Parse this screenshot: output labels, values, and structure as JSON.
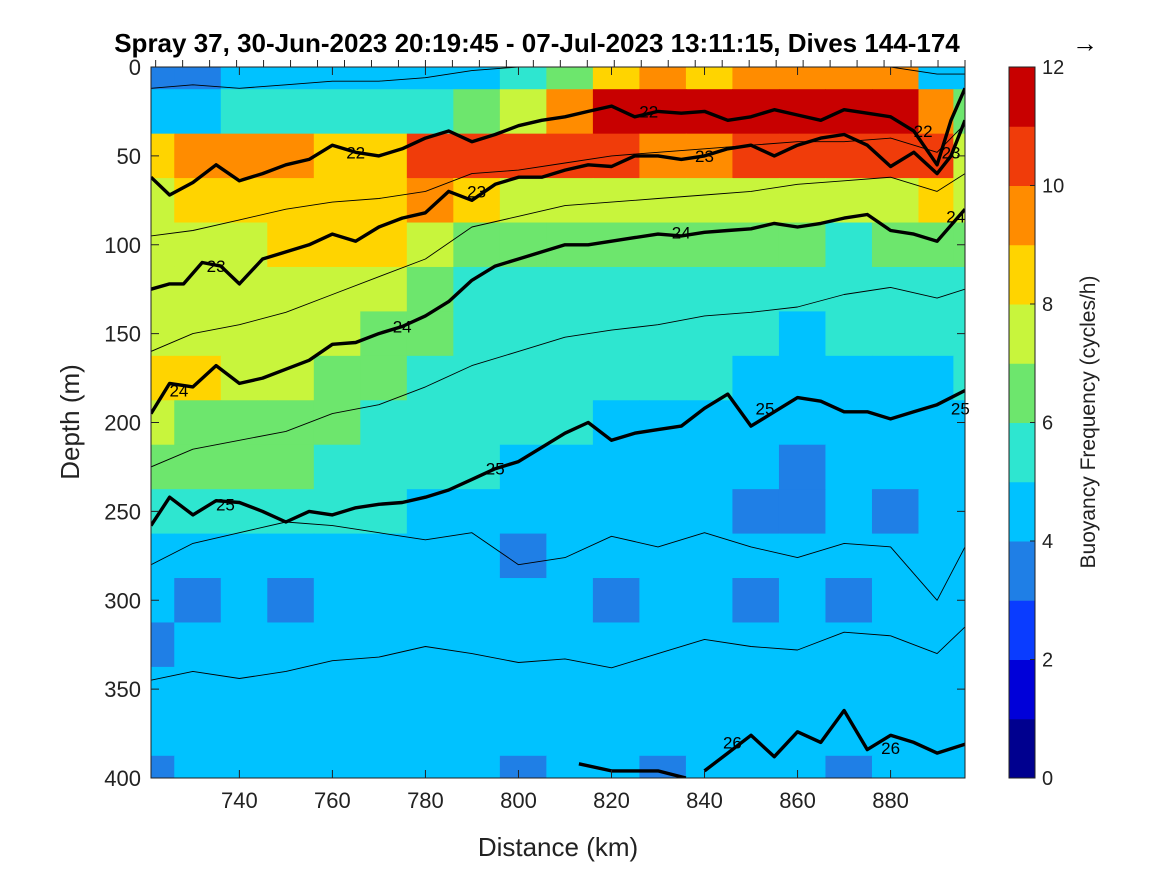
{
  "chart_data": {
    "type": "heatmap",
    "title": "Spray 37, 30-Jun-2023 20:19:45 - 07-Jul-2023 13:11:15, Dives 144-174",
    "title_arrow": "→",
    "xlabel": "Distance (km)",
    "ylabel": "Depth (m)",
    "xlim": [
      721,
      896
    ],
    "ylim": [
      0,
      400
    ],
    "y_reversed": true,
    "xticks": [
      740,
      760,
      780,
      800,
      820,
      840,
      860,
      880
    ],
    "yticks": [
      0,
      50,
      100,
      150,
      200,
      250,
      300,
      350,
      400
    ],
    "grid": false,
    "colorbar": {
      "label": "Buoyancy Frequency (cycles/h)",
      "range": [
        0,
        12
      ],
      "ticks": [
        0,
        2,
        4,
        6,
        8,
        10,
        12
      ],
      "levels": [
        0,
        1,
        2,
        3,
        4,
        5,
        6,
        7,
        8,
        9,
        10,
        11,
        12
      ],
      "colors": [
        "#00008f",
        "#0000d9",
        "#0a3cff",
        "#1f7fe6",
        "#00c2ff",
        "#2ee6d0",
        "#6de66d",
        "#c8f53c",
        "#ffd400",
        "#ff8c00",
        "#f03c0a",
        "#c80000"
      ],
      "position": "right"
    },
    "field": {
      "x": [
        721,
        731,
        741,
        751,
        761,
        771,
        781,
        791,
        801,
        811,
        821,
        831,
        841,
        851,
        861,
        871,
        881,
        891,
        896
      ],
      "depth": [
        0,
        25,
        50,
        75,
        100,
        125,
        150,
        175,
        200,
        225,
        250,
        275,
        300,
        325,
        350,
        375,
        400
      ],
      "values": [
        [
          3.6,
          3.5,
          4.2,
          4.6,
          4.6,
          4.5,
          4.6,
          4.6,
          5.2,
          6.8,
          8.6,
          9.4,
          8.6,
          9.0,
          9.6,
          9.6,
          9.2,
          4.0,
          4.0
        ],
        [
          4.2,
          4.8,
          5.6,
          5.8,
          5.6,
          5.4,
          5.8,
          6.4,
          7.4,
          9.6,
          11.0,
          11.2,
          11.0,
          11.2,
          11.6,
          11.6,
          11.4,
          9.0,
          6.0
        ],
        [
          8.4,
          9.0,
          9.4,
          9.0,
          8.8,
          8.8,
          10.6,
          10.8,
          10.6,
          10.4,
          10.2,
          9.8,
          9.6,
          10.0,
          10.0,
          10.2,
          10.6,
          10.6,
          7.6
        ],
        [
          7.8,
          8.4,
          8.6,
          8.4,
          8.6,
          8.8,
          9.4,
          8.0,
          7.8,
          7.6,
          7.6,
          7.4,
          7.6,
          7.8,
          7.8,
          7.6,
          7.8,
          8.6,
          7.6
        ],
        [
          7.6,
          7.8,
          7.8,
          8.0,
          8.4,
          8.4,
          7.6,
          6.8,
          6.4,
          6.2,
          6.0,
          6.0,
          6.2,
          6.0,
          6.0,
          5.8,
          6.0,
          6.4,
          6.6
        ],
        [
          7.6,
          7.8,
          7.8,
          7.8,
          7.8,
          7.4,
          6.6,
          5.8,
          5.6,
          5.4,
          5.4,
          5.2,
          5.4,
          5.4,
          5.2,
          5.4,
          5.4,
          5.6,
          5.8
        ],
        [
          7.6,
          7.6,
          7.6,
          7.4,
          7.0,
          6.6,
          6.0,
          5.4,
          5.0,
          5.2,
          5.4,
          5.0,
          5.2,
          5.0,
          4.8,
          5.0,
          5.2,
          5.2,
          5.4
        ],
        [
          8.0,
          8.2,
          7.6,
          7.2,
          6.6,
          6.2,
          5.8,
          5.2,
          5.2,
          5.2,
          5.2,
          5.0,
          5.0,
          4.8,
          4.4,
          4.6,
          4.8,
          4.8,
          5.0
        ],
        [
          7.0,
          6.8,
          6.6,
          6.4,
          6.0,
          5.6,
          5.4,
          5.2,
          5.0,
          5.0,
          4.6,
          4.4,
          4.2,
          4.2,
          4.4,
          4.2,
          4.2,
          4.4,
          4.6
        ],
        [
          6.8,
          6.6,
          6.2,
          6.0,
          5.6,
          5.4,
          5.2,
          5.0,
          4.8,
          4.4,
          4.2,
          4.4,
          4.2,
          4.0,
          3.8,
          4.0,
          4.2,
          4.0,
          4.2
        ],
        [
          5.6,
          5.4,
          5.6,
          5.6,
          5.4,
          5.0,
          4.8,
          4.8,
          4.4,
          4.2,
          4.2,
          4.6,
          4.0,
          3.8,
          3.8,
          4.0,
          3.8,
          4.0,
          4.0
        ],
        [
          4.6,
          4.4,
          4.6,
          4.4,
          4.4,
          4.6,
          4.6,
          4.2,
          3.8,
          4.4,
          4.0,
          4.8,
          4.2,
          4.4,
          4.0,
          4.2,
          4.0,
          4.2,
          4.2
        ],
        [
          4.4,
          3.8,
          4.2,
          3.8,
          4.2,
          4.6,
          4.8,
          4.6,
          4.2,
          4.0,
          3.8,
          4.4,
          4.6,
          3.8,
          4.2,
          3.8,
          4.2,
          4.6,
          4.4
        ],
        [
          3.8,
          4.4,
          4.6,
          4.8,
          4.4,
          4.6,
          4.4,
          4.8,
          4.6,
          4.4,
          4.2,
          4.0,
          4.4,
          4.8,
          4.6,
          4.0,
          4.4,
          4.6,
          4.2
        ],
        [
          4.6,
          4.8,
          4.6,
          4.4,
          4.6,
          4.8,
          4.6,
          4.4,
          4.8,
          4.6,
          4.2,
          4.6,
          4.4,
          4.8,
          4.4,
          4.6,
          4.8,
          4.4,
          4.6
        ],
        [
          4.4,
          4.6,
          4.8,
          4.6,
          4.4,
          4.2,
          4.6,
          4.4,
          4.2,
          4.0,
          4.4,
          4.2,
          4.6,
          4.2,
          4.0,
          4.4,
          4.6,
          4.2,
          4.4
        ],
        [
          3.8,
          4.2,
          4.4,
          4.2,
          4.0,
          4.2,
          4.4,
          4.0,
          3.8,
          4.2,
          4.0,
          3.8,
          4.2,
          4.4,
          4.2,
          3.8,
          4.0,
          4.2,
          4.0
        ]
      ]
    },
    "contours": [
      {
        "label": "22",
        "style": "bold",
        "x": [
          721,
          725,
          730,
          735,
          740,
          745,
          750,
          755,
          760,
          765,
          770,
          775,
          780,
          785,
          790,
          795,
          800,
          805,
          810,
          815,
          820,
          825,
          830,
          835,
          840,
          845,
          850,
          855,
          860,
          865,
          870,
          875,
          880,
          885,
          890,
          893,
          896
        ],
        "y": [
          62,
          72,
          65,
          55,
          64,
          60,
          55,
          52,
          44,
          48,
          50,
          46,
          40,
          36,
          42,
          38,
          33,
          30,
          28,
          25,
          22,
          28,
          25,
          26,
          25,
          30,
          28,
          24,
          27,
          30,
          24,
          26,
          28,
          36,
          55,
          30,
          12
        ],
        "label_positions": [
          [
            765,
            48
          ],
          [
            828,
            25
          ],
          [
            887,
            36
          ]
        ]
      },
      {
        "label": "23",
        "style": "bold",
        "x": [
          721,
          725,
          728,
          732,
          736,
          740,
          745,
          750,
          755,
          760,
          765,
          770,
          775,
          780,
          785,
          790,
          795,
          800,
          805,
          810,
          815,
          820,
          825,
          830,
          835,
          840,
          845,
          850,
          855,
          860,
          865,
          870,
          875,
          880,
          885,
          890,
          893,
          896
        ],
        "y": [
          125,
          122,
          122,
          110,
          112,
          122,
          108,
          104,
          100,
          94,
          98,
          90,
          85,
          82,
          70,
          75,
          66,
          62,
          62,
          58,
          55,
          56,
          50,
          50,
          52,
          50,
          46,
          44,
          50,
          44,
          40,
          38,
          44,
          56,
          48,
          60,
          50,
          30
        ],
        "label_positions": [
          [
            735,
            112
          ],
          [
            791,
            70
          ],
          [
            840,
            50
          ],
          [
            893,
            48
          ]
        ]
      },
      {
        "label": "24",
        "style": "bold",
        "x": [
          721,
          725,
          730,
          735,
          740,
          745,
          750,
          755,
          760,
          765,
          770,
          775,
          780,
          785,
          790,
          795,
          800,
          805,
          810,
          815,
          820,
          825,
          830,
          835,
          840,
          845,
          850,
          855,
          860,
          865,
          870,
          875,
          880,
          885,
          890,
          896
        ],
        "y": [
          195,
          178,
          180,
          168,
          178,
          175,
          170,
          165,
          156,
          155,
          150,
          146,
          140,
          132,
          120,
          112,
          108,
          104,
          100,
          100,
          98,
          96,
          94,
          95,
          93,
          92,
          91,
          88,
          90,
          88,
          85,
          83,
          92,
          94,
          98,
          80
        ],
        "label_positions": [
          [
            727,
            182
          ],
          [
            775,
            146
          ],
          [
            835,
            93
          ],
          [
            894,
            84
          ]
        ]
      },
      {
        "label": "25",
        "style": "bold",
        "x": [
          721,
          725,
          730,
          735,
          740,
          745,
          750,
          755,
          760,
          765,
          770,
          775,
          780,
          785,
          790,
          795,
          800,
          805,
          810,
          815,
          820,
          825,
          830,
          835,
          840,
          845,
          850,
          855,
          860,
          865,
          870,
          875,
          880,
          885,
          890,
          896
        ],
        "y": [
          258,
          242,
          252,
          244,
          245,
          250,
          256,
          250,
          252,
          248,
          246,
          245,
          242,
          238,
          232,
          226,
          222,
          214,
          206,
          200,
          210,
          206,
          204,
          202,
          192,
          184,
          202,
          194,
          186,
          188,
          194,
          194,
          198,
          194,
          190,
          182
        ],
        "label_positions": [
          [
            737,
            246
          ],
          [
            795,
            226
          ],
          [
            853,
            192
          ],
          [
            895,
            192
          ]
        ]
      },
      {
        "label": "26",
        "style": "bold",
        "x": [
          840,
          845,
          850,
          855,
          860,
          865,
          870,
          875,
          880,
          885,
          890,
          896
        ],
        "y": [
          396,
          386,
          376,
          388,
          374,
          380,
          362,
          384,
          376,
          380,
          386,
          381
        ],
        "label_positions": [
          [
            846,
            380
          ],
          [
            880,
            383
          ]
        ]
      },
      {
        "label": "26",
        "style": "bold",
        "x": [
          813,
          820,
          830,
          836
        ],
        "y": [
          392,
          396,
          396,
          400
        ],
        "label_positions": []
      },
      {
        "label": "",
        "style": "thin",
        "x": [
          721,
          730,
          740,
          750,
          760,
          770,
          780,
          790,
          800,
          810,
          820,
          830,
          840,
          850,
          860,
          870,
          880,
          890,
          896
        ],
        "y": [
          12,
          10,
          12,
          10,
          8,
          8,
          6,
          2,
          0,
          0,
          0,
          0,
          0,
          0,
          0,
          0,
          0,
          4,
          4
        ],
        "label_positions": []
      },
      {
        "label": "",
        "style": "thin",
        "x": [
          721,
          730,
          740,
          750,
          760,
          770,
          780,
          790,
          800,
          810,
          820,
          830,
          840,
          850,
          860,
          870,
          880,
          890,
          896
        ],
        "y": [
          95,
          92,
          86,
          80,
          76,
          74,
          70,
          60,
          58,
          54,
          50,
          48,
          46,
          44,
          42,
          42,
          40,
          48,
          32
        ],
        "label_positions": []
      },
      {
        "label": "",
        "style": "thin",
        "x": [
          721,
          730,
          740,
          750,
          760,
          770,
          780,
          790,
          800,
          810,
          820,
          830,
          840,
          850,
          860,
          870,
          880,
          890,
          896
        ],
        "y": [
          160,
          150,
          145,
          138,
          128,
          118,
          108,
          90,
          84,
          78,
          76,
          74,
          72,
          70,
          66,
          64,
          62,
          70,
          60
        ],
        "label_positions": []
      },
      {
        "label": "",
        "style": "thin",
        "x": [
          721,
          730,
          740,
          750,
          760,
          770,
          780,
          790,
          800,
          810,
          820,
          830,
          840,
          850,
          860,
          870,
          880,
          890,
          896
        ],
        "y": [
          225,
          215,
          210,
          205,
          195,
          190,
          180,
          168,
          160,
          152,
          148,
          145,
          140,
          138,
          135,
          128,
          124,
          130,
          125
        ],
        "label_positions": []
      },
      {
        "label": "",
        "style": "thin",
        "x": [
          721,
          730,
          740,
          750,
          760,
          770,
          780,
          790,
          800,
          810,
          820,
          830,
          840,
          850,
          860,
          870,
          880,
          890,
          896
        ],
        "y": [
          280,
          268,
          262,
          256,
          258,
          262,
          266,
          262,
          280,
          276,
          264,
          270,
          262,
          270,
          276,
          268,
          270,
          300,
          270
        ],
        "label_positions": []
      },
      {
        "label": "",
        "style": "thin",
        "x": [
          721,
          730,
          740,
          750,
          760,
          770,
          780,
          790,
          800,
          810,
          820,
          830,
          840,
          850,
          860,
          870,
          880,
          890,
          896
        ],
        "y": [
          345,
          340,
          344,
          340,
          334,
          332,
          326,
          330,
          335,
          333,
          338,
          330,
          322,
          326,
          328,
          318,
          320,
          330,
          315
        ],
        "label_positions": []
      }
    ]
  }
}
